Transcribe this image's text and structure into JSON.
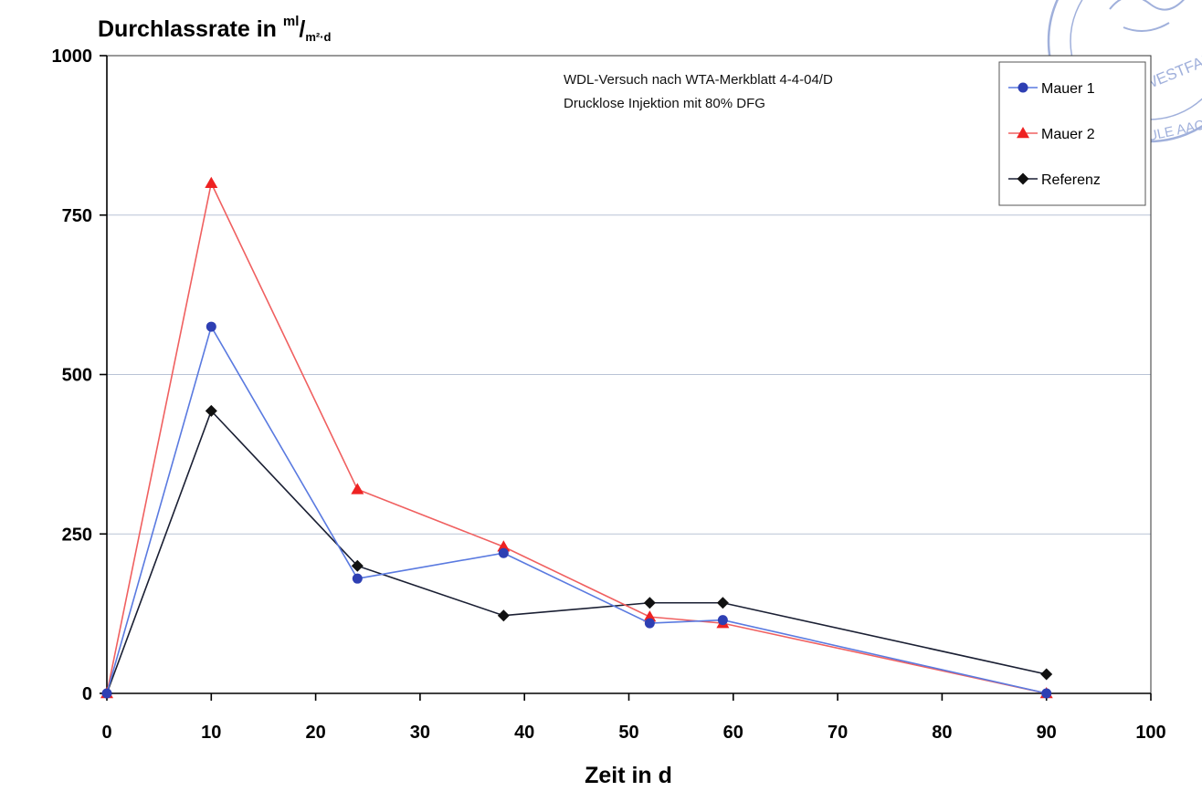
{
  "colors": {
    "mauer1": "#2e3fb3",
    "mauer1_line": "#5a7ae0",
    "mauer2": "#ee2222",
    "mauer2_line": "#f06060",
    "referenz": "#111111",
    "referenz_line": "#1a1f33",
    "stamp": "#6e86c9"
  },
  "chart_data": {
    "type": "line",
    "title": {
      "main": "Durchlassrate in ",
      "unit_numerator": "ml",
      "unit_slash": "/",
      "unit_denominator": "m²·d"
    },
    "xlabel": "Zeit in d",
    "ylabel": "",
    "xlim": [
      0,
      100
    ],
    "ylim": [
      0,
      1000
    ],
    "x_ticks": [
      "0",
      "10",
      "20",
      "30",
      "40",
      "50",
      "60",
      "70",
      "80",
      "90",
      "100"
    ],
    "y_ticks": [
      "0",
      "250",
      "500",
      "750",
      "1000"
    ],
    "grid": "horizontal",
    "legend_position": "top-right",
    "annotation": [
      "WDL-Versuch nach WTA-Merkblatt 4-4-04/D",
      "Drucklose Injektion mit 80% DFG"
    ],
    "series": [
      {
        "name": "Mauer 1",
        "marker": "circle",
        "x": [
          0,
          10,
          24,
          38,
          52,
          59,
          90
        ],
        "y": [
          0,
          575,
          180,
          220,
          110,
          115,
          0
        ]
      },
      {
        "name": "Mauer 2",
        "marker": "triangle",
        "x": [
          0,
          10,
          24,
          38,
          52,
          59,
          90
        ],
        "y": [
          0,
          800,
          320,
          230,
          120,
          110,
          0
        ]
      },
      {
        "name": "Referenz",
        "marker": "diamond",
        "x": [
          0,
          10,
          24,
          38,
          52,
          59,
          90
        ],
        "y": [
          0,
          443,
          200,
          122,
          142,
          142,
          30
        ]
      }
    ]
  }
}
